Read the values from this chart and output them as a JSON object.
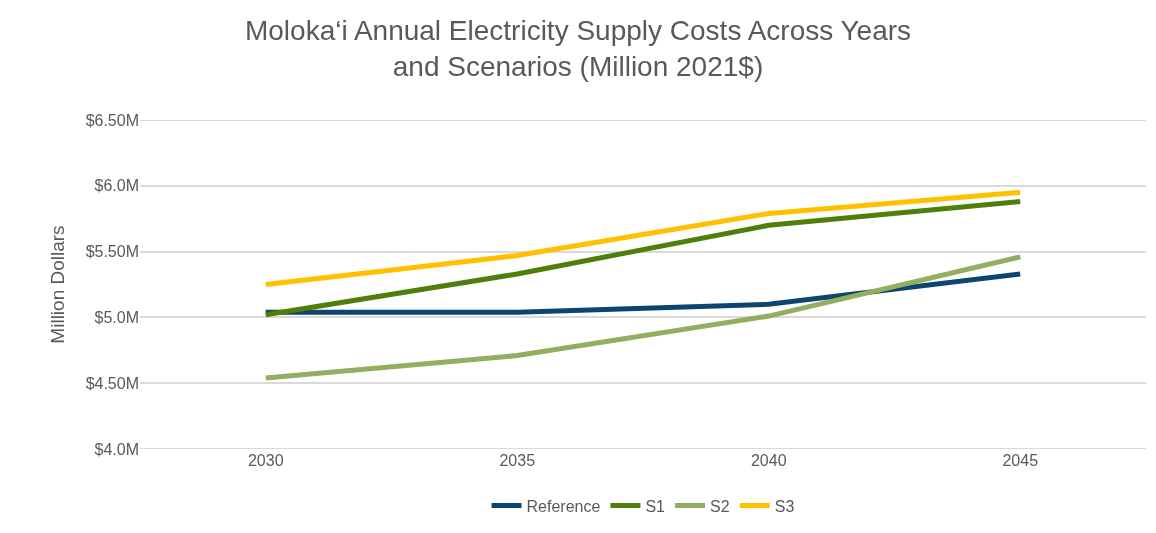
{
  "chart_data": {
    "type": "line",
    "title": "Moloka‘i Annual Electricity Supply Costs Across Years and Scenarios (Million 2021$)",
    "ylabel": "Million Dollars",
    "categories": [
      "2030",
      "2035",
      "2040",
      "2045"
    ],
    "series": [
      {
        "name": "Reference",
        "color": "#0e4470",
        "values": [
          5.04,
          5.04,
          5.1,
          5.33
        ]
      },
      {
        "name": "S1",
        "color": "#507e0b",
        "values": [
          5.02,
          5.33,
          5.7,
          5.88
        ]
      },
      {
        "name": "S2",
        "color": "#93ae5f",
        "values": [
          4.54,
          4.71,
          5.01,
          5.46
        ]
      },
      {
        "name": "S3",
        "color": "#ffc000",
        "values": [
          5.25,
          5.47,
          5.79,
          5.95
        ]
      }
    ],
    "ylim": [
      4.0,
      6.5
    ],
    "yticks": [
      {
        "value": 4.0,
        "label": "$4.0M"
      },
      {
        "value": 4.5,
        "label": "$4.50M"
      },
      {
        "value": 5.0,
        "label": "$5.0M"
      },
      {
        "value": 5.5,
        "label": "$5.50M"
      },
      {
        "value": 6.0,
        "label": "$6.0M"
      },
      {
        "value": 6.5,
        "label": "$6.50M"
      }
    ],
    "grid": "y",
    "legend": "bottom",
    "marker": "none",
    "line_style": "solid"
  }
}
